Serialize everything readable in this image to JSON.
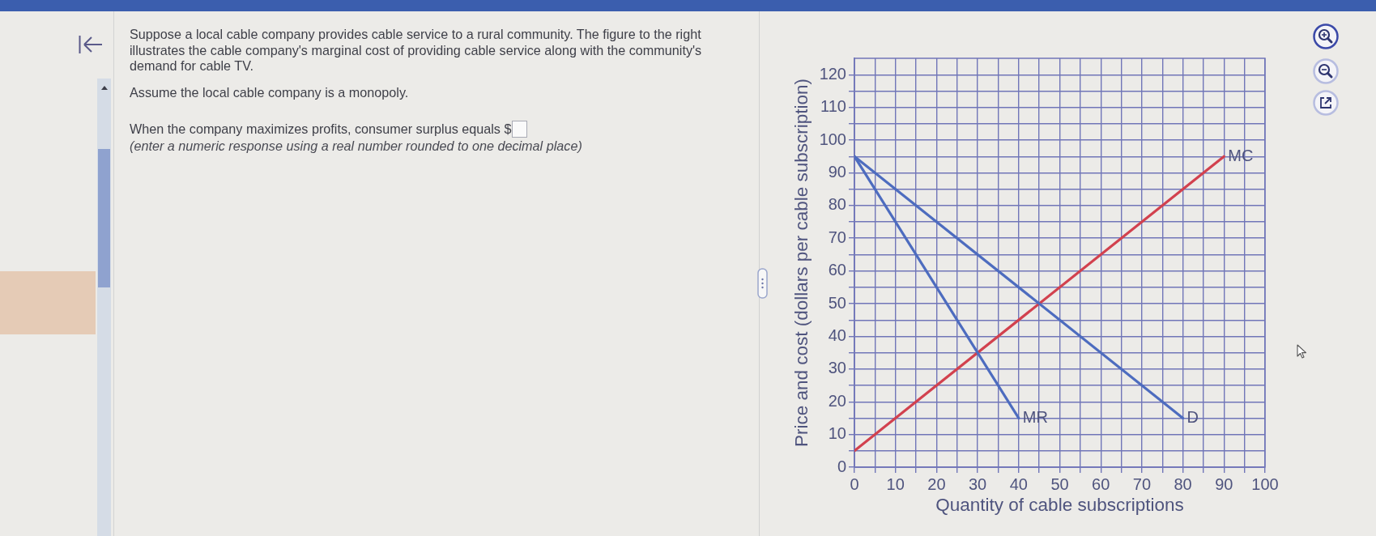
{
  "chart_data": {
    "type": "line",
    "xlabel": "Quantity of cable subscriptions",
    "ylabel": "Price and cost (dollars per cable subscription)",
    "annotations": [
      "Suppose a local cable company provides cable service to a rural community. The figure to the right illustrates the cable company's marginal cost of providing cable service along with the community's demand for cable TV.",
      "Assume the local cable company is a monopoly.",
      "When the company maximizes profits, consumer surplus equals $",
      "(enter a numeric response using a real number rounded to one decimal place)"
    ],
    "xlim": [
      0,
      100
    ],
    "xticks": [
      0,
      {
        "value": 5,
        "label": null
      },
      10,
      {
        "value": 15,
        "label": null
      },
      20,
      {
        "value": 25,
        "label": null
      },
      30,
      {
        "value": 35,
        "label": null
      },
      40,
      {
        "value": 45,
        "label": null
      },
      50,
      {
        "value": 55,
        "label": null
      },
      60,
      {
        "value": 65,
        "label": null
      },
      70,
      {
        "value": 75,
        "label": null
      },
      80,
      {
        "value": 85,
        "label": null
      },
      90,
      {
        "value": 95,
        "label": null
      },
      100
    ],
    "ylim": [
      0,
      125
    ],
    "yticks": [
      0,
      {
        "value": 5,
        "label": null
      },
      10,
      {
        "value": 15,
        "label": null
      },
      20,
      {
        "value": 25,
        "label": null
      },
      30,
      {
        "value": 35,
        "label": null
      },
      40,
      {
        "value": 45,
        "label": null
      },
      50,
      {
        "value": 55,
        "label": null
      },
      60,
      {
        "value": 65,
        "label": null
      },
      70,
      {
        "value": 75,
        "label": null
      },
      80,
      {
        "value": 85,
        "label": null
      },
      90,
      {
        "value": 95,
        "label": null
      },
      100,
      {
        "value": 105,
        "label": null
      },
      110,
      {
        "value": 115,
        "label": null
      },
      120
    ],
    "grid": true,
    "marker": "none",
    "line_style": "solid",
    "series": [
      {
        "name": "D",
        "color": "#4d6cbf",
        "x": [
          0,
          80
        ],
        "values": [
          95,
          15
        ]
      },
      {
        "name": "MR",
        "color": "#4d6cbf",
        "x": [
          0,
          40
        ],
        "values": [
          95,
          15
        ]
      },
      {
        "name": "MC",
        "color": "#d2414e",
        "x": [
          0,
          90
        ],
        "values": [
          5,
          95
        ]
      }
    ]
  }
}
